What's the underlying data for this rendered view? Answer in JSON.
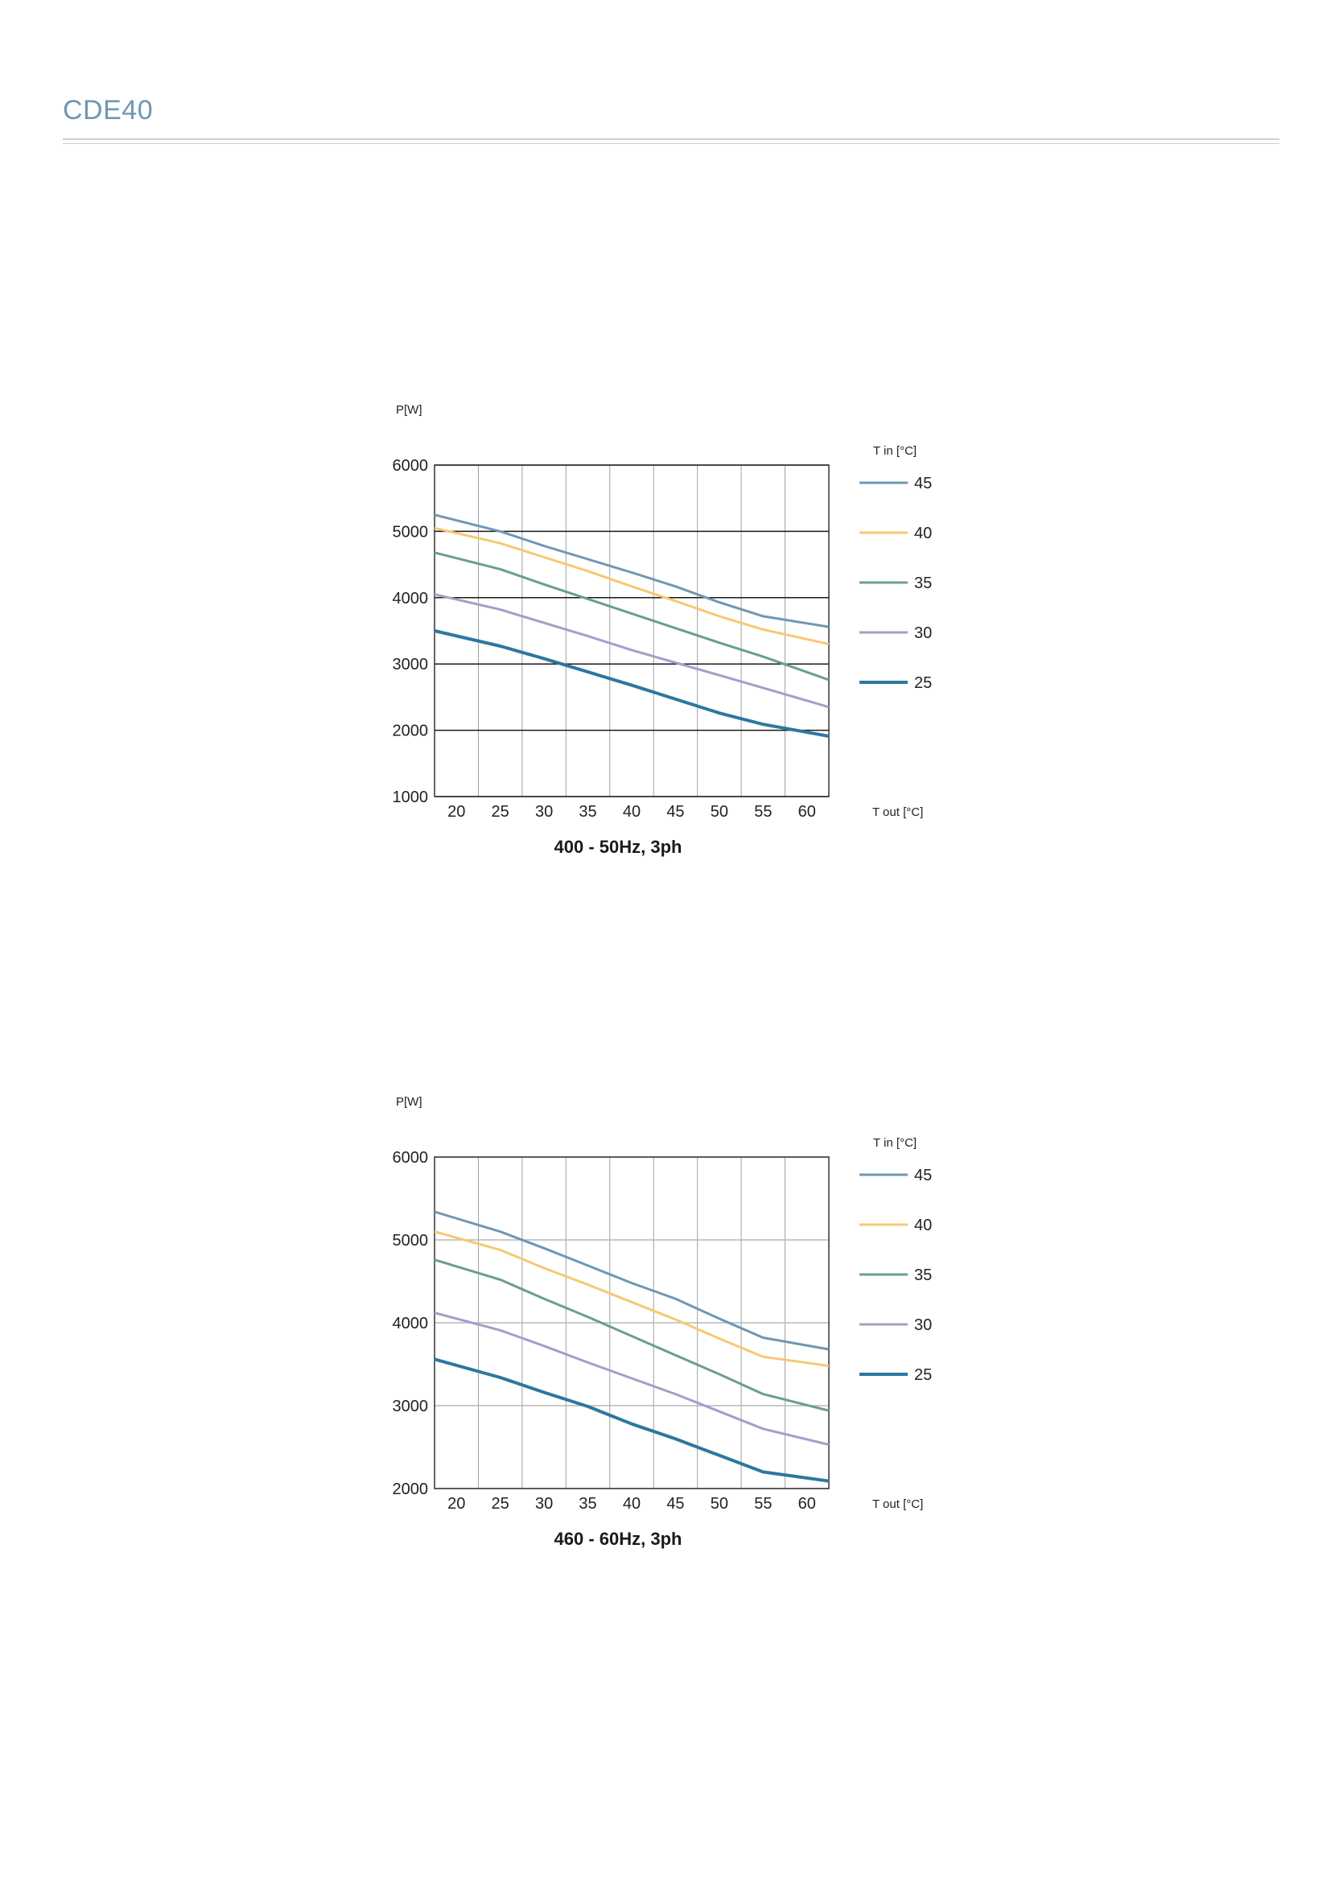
{
  "header": {
    "title": "CDE40"
  },
  "chart_data": [
    {
      "type": "line",
      "title": "400 - 50Hz, 3ph",
      "ylabel": "P[W]",
      "xlabel": "T out [°C]",
      "legend_title": "T in [°C]",
      "legend_position": "right",
      "grid": true,
      "grid_color": "#1a1a1a",
      "x_ticks": [
        20,
        25,
        30,
        35,
        40,
        45,
        50,
        55,
        60
      ],
      "xlim": [
        17.5,
        62.5
      ],
      "y_ticks": [
        1000,
        2000,
        3000,
        4000,
        5000,
        6000
      ],
      "ylim": [
        1000,
        6000
      ],
      "series": [
        {
          "name": "45",
          "color": "#6f97b3",
          "width": 3,
          "x": [
            17.5,
            25,
            30,
            35,
            40,
            45,
            50,
            55,
            62.5
          ],
          "y": [
            5250,
            5000,
            4780,
            4580,
            4380,
            4170,
            3930,
            3720,
            3560
          ]
        },
        {
          "name": "40",
          "color": "#f7c874",
          "width": 3,
          "x": [
            17.5,
            25,
            30,
            35,
            40,
            45,
            50,
            55,
            62.5
          ],
          "y": [
            5050,
            4820,
            4610,
            4400,
            4170,
            3950,
            3720,
            3520,
            3300
          ]
        },
        {
          "name": "35",
          "color": "#6d9f86",
          "width": 3,
          "x": [
            17.5,
            25,
            30,
            35,
            40,
            45,
            50,
            55,
            62.5
          ],
          "y": [
            4680,
            4430,
            4200,
            3980,
            3760,
            3540,
            3320,
            3110,
            2760
          ]
        },
        {
          "name": "30",
          "color": "#a39ec9",
          "width": 3,
          "x": [
            17.5,
            25,
            30,
            35,
            40,
            45,
            50,
            55,
            62.5
          ],
          "y": [
            4050,
            3820,
            3620,
            3420,
            3210,
            3020,
            2830,
            2640,
            2350
          ]
        },
        {
          "name": "25",
          "color": "#2d77a1",
          "width": 4,
          "x": [
            17.5,
            25,
            30,
            35,
            40,
            45,
            50,
            55,
            62.5
          ],
          "y": [
            3500,
            3270,
            3080,
            2880,
            2680,
            2470,
            2260,
            2090,
            1910
          ]
        }
      ]
    },
    {
      "type": "line",
      "title": "460 - 60Hz, 3ph",
      "ylabel": "P[W]",
      "xlabel": "T out [°C]",
      "legend_title": "T in [°C]",
      "legend_position": "right",
      "grid": true,
      "grid_color": "#b8b8b8",
      "x_ticks": [
        20,
        25,
        30,
        35,
        40,
        45,
        50,
        55,
        60
      ],
      "xlim": [
        17.5,
        62.5
      ],
      "y_ticks": [
        2000,
        3000,
        4000,
        5000,
        6000
      ],
      "ylim": [
        2000,
        6000
      ],
      "series": [
        {
          "name": "45",
          "color": "#6f97b3",
          "width": 3,
          "x": [
            17.5,
            25,
            30,
            35,
            40,
            45,
            50,
            55,
            62.5
          ],
          "y": [
            5340,
            5100,
            4900,
            4690,
            4480,
            4290,
            4050,
            3820,
            3680
          ]
        },
        {
          "name": "40",
          "color": "#f7c874",
          "width": 3,
          "x": [
            17.5,
            25,
            30,
            35,
            40,
            45,
            50,
            55,
            62.5
          ],
          "y": [
            5100,
            4880,
            4660,
            4460,
            4250,
            4040,
            3810,
            3590,
            3480
          ]
        },
        {
          "name": "35",
          "color": "#6d9f86",
          "width": 3,
          "x": [
            17.5,
            25,
            30,
            35,
            40,
            45,
            50,
            55,
            62.5
          ],
          "y": [
            4760,
            4520,
            4290,
            4070,
            3840,
            3610,
            3380,
            3140,
            2940
          ]
        },
        {
          "name": "30",
          "color": "#a39ec9",
          "width": 3,
          "x": [
            17.5,
            25,
            30,
            35,
            40,
            45,
            50,
            55,
            62.5
          ],
          "y": [
            4120,
            3910,
            3720,
            3520,
            3330,
            3140,
            2930,
            2720,
            2530
          ]
        },
        {
          "name": "25",
          "color": "#2d77a1",
          "width": 4,
          "x": [
            17.5,
            25,
            30,
            35,
            40,
            45,
            50,
            55,
            62.5
          ],
          "y": [
            3560,
            3340,
            3160,
            2990,
            2780,
            2600,
            2400,
            2200,
            2090
          ]
        }
      ]
    }
  ]
}
